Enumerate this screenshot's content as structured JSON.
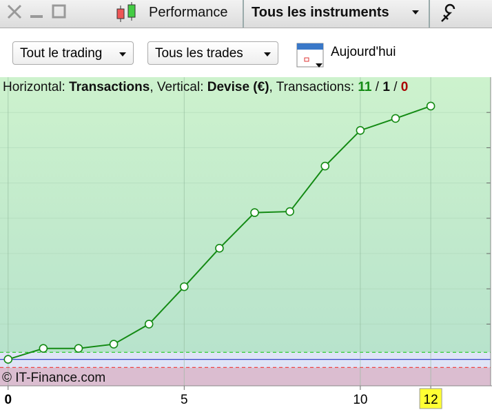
{
  "toolbar": {
    "tab": "Performance",
    "instrument": "Tous les instruments"
  },
  "filters": {
    "trading": "Tout le trading",
    "trades": "Tous les trades",
    "date": "Aujourd'hui"
  },
  "chart_data": {
    "type": "line",
    "header": {
      "x_prefix": "Horizontal:",
      "xlabel": "Transactions",
      "y_prefix": ", Vertical:",
      "ylabel": "Devise (€)",
      "count_prefix": ", Transactions:",
      "wins": 11,
      "separator": "/",
      "neutral": 1,
      "losses": 0
    },
    "watermark": "© IT-Finance.com",
    "x": [
      0,
      1,
      2,
      3,
      4,
      5,
      6,
      7,
      8,
      9,
      10,
      11,
      12
    ],
    "series": [
      {
        "color": "#138a13",
        "values": [
          0,
          0.31,
          0.31,
          0.43,
          1.0,
          2.06,
          3.15,
          4.16,
          4.19,
          5.48,
          6.49,
          6.83,
          7.18
        ]
      }
    ],
    "upper_threshold": 0.2,
    "lower_threshold": -0.23,
    "xlim": [
      -0.23,
      13.7
    ],
    "ylim": [
      -0.75,
      8
    ],
    "xticks": [
      0,
      5,
      10,
      12
    ],
    "yticks": [
      1,
      2,
      3,
      4,
      5,
      6,
      7
    ],
    "current_x": 12,
    "grid": true
  }
}
